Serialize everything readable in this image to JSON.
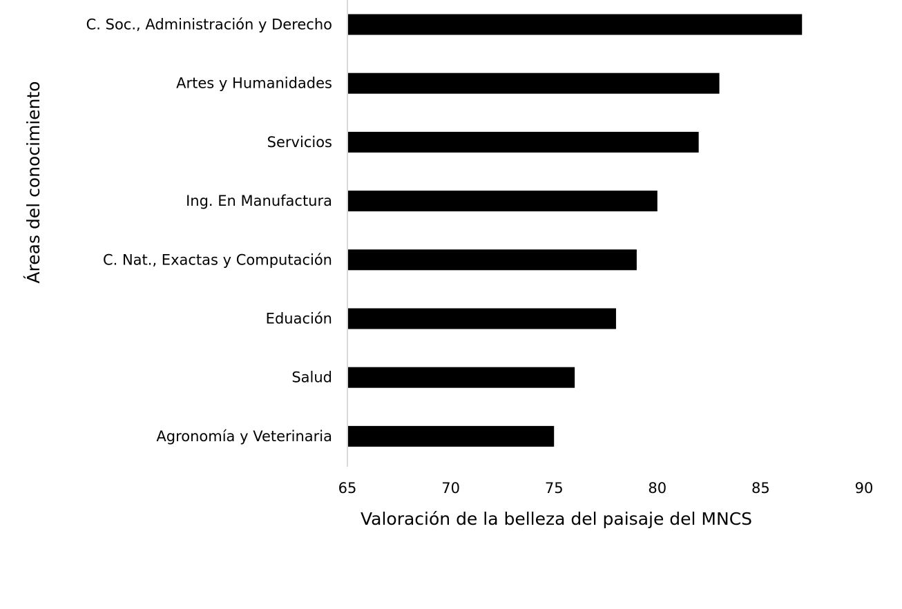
{
  "chart_data": {
    "type": "bar",
    "orientation": "horizontal",
    "categories": [
      "C. Soc., Administración y Derecho",
      "Artes y Humanidades",
      "Servicios",
      "Ing. En Manufactura",
      "C. Nat., Exactas y Computación",
      "Eduación",
      "Salud",
      "Agronomía y Veterinaria"
    ],
    "values": [
      87,
      83,
      82,
      80,
      79,
      78,
      76,
      75
    ],
    "xlabel": "Valoración de la belleza del paisaje del MNCS",
    "ylabel": "Áreas del conocimiento",
    "xlim": [
      65,
      90
    ],
    "xticks": [
      "65",
      "70",
      "75",
      "80",
      "85",
      "90"
    ],
    "grid": false,
    "legend": "none",
    "colors": {
      "bar": "#000000",
      "axis_line": "#d9d9d9",
      "text": "#000000"
    }
  }
}
